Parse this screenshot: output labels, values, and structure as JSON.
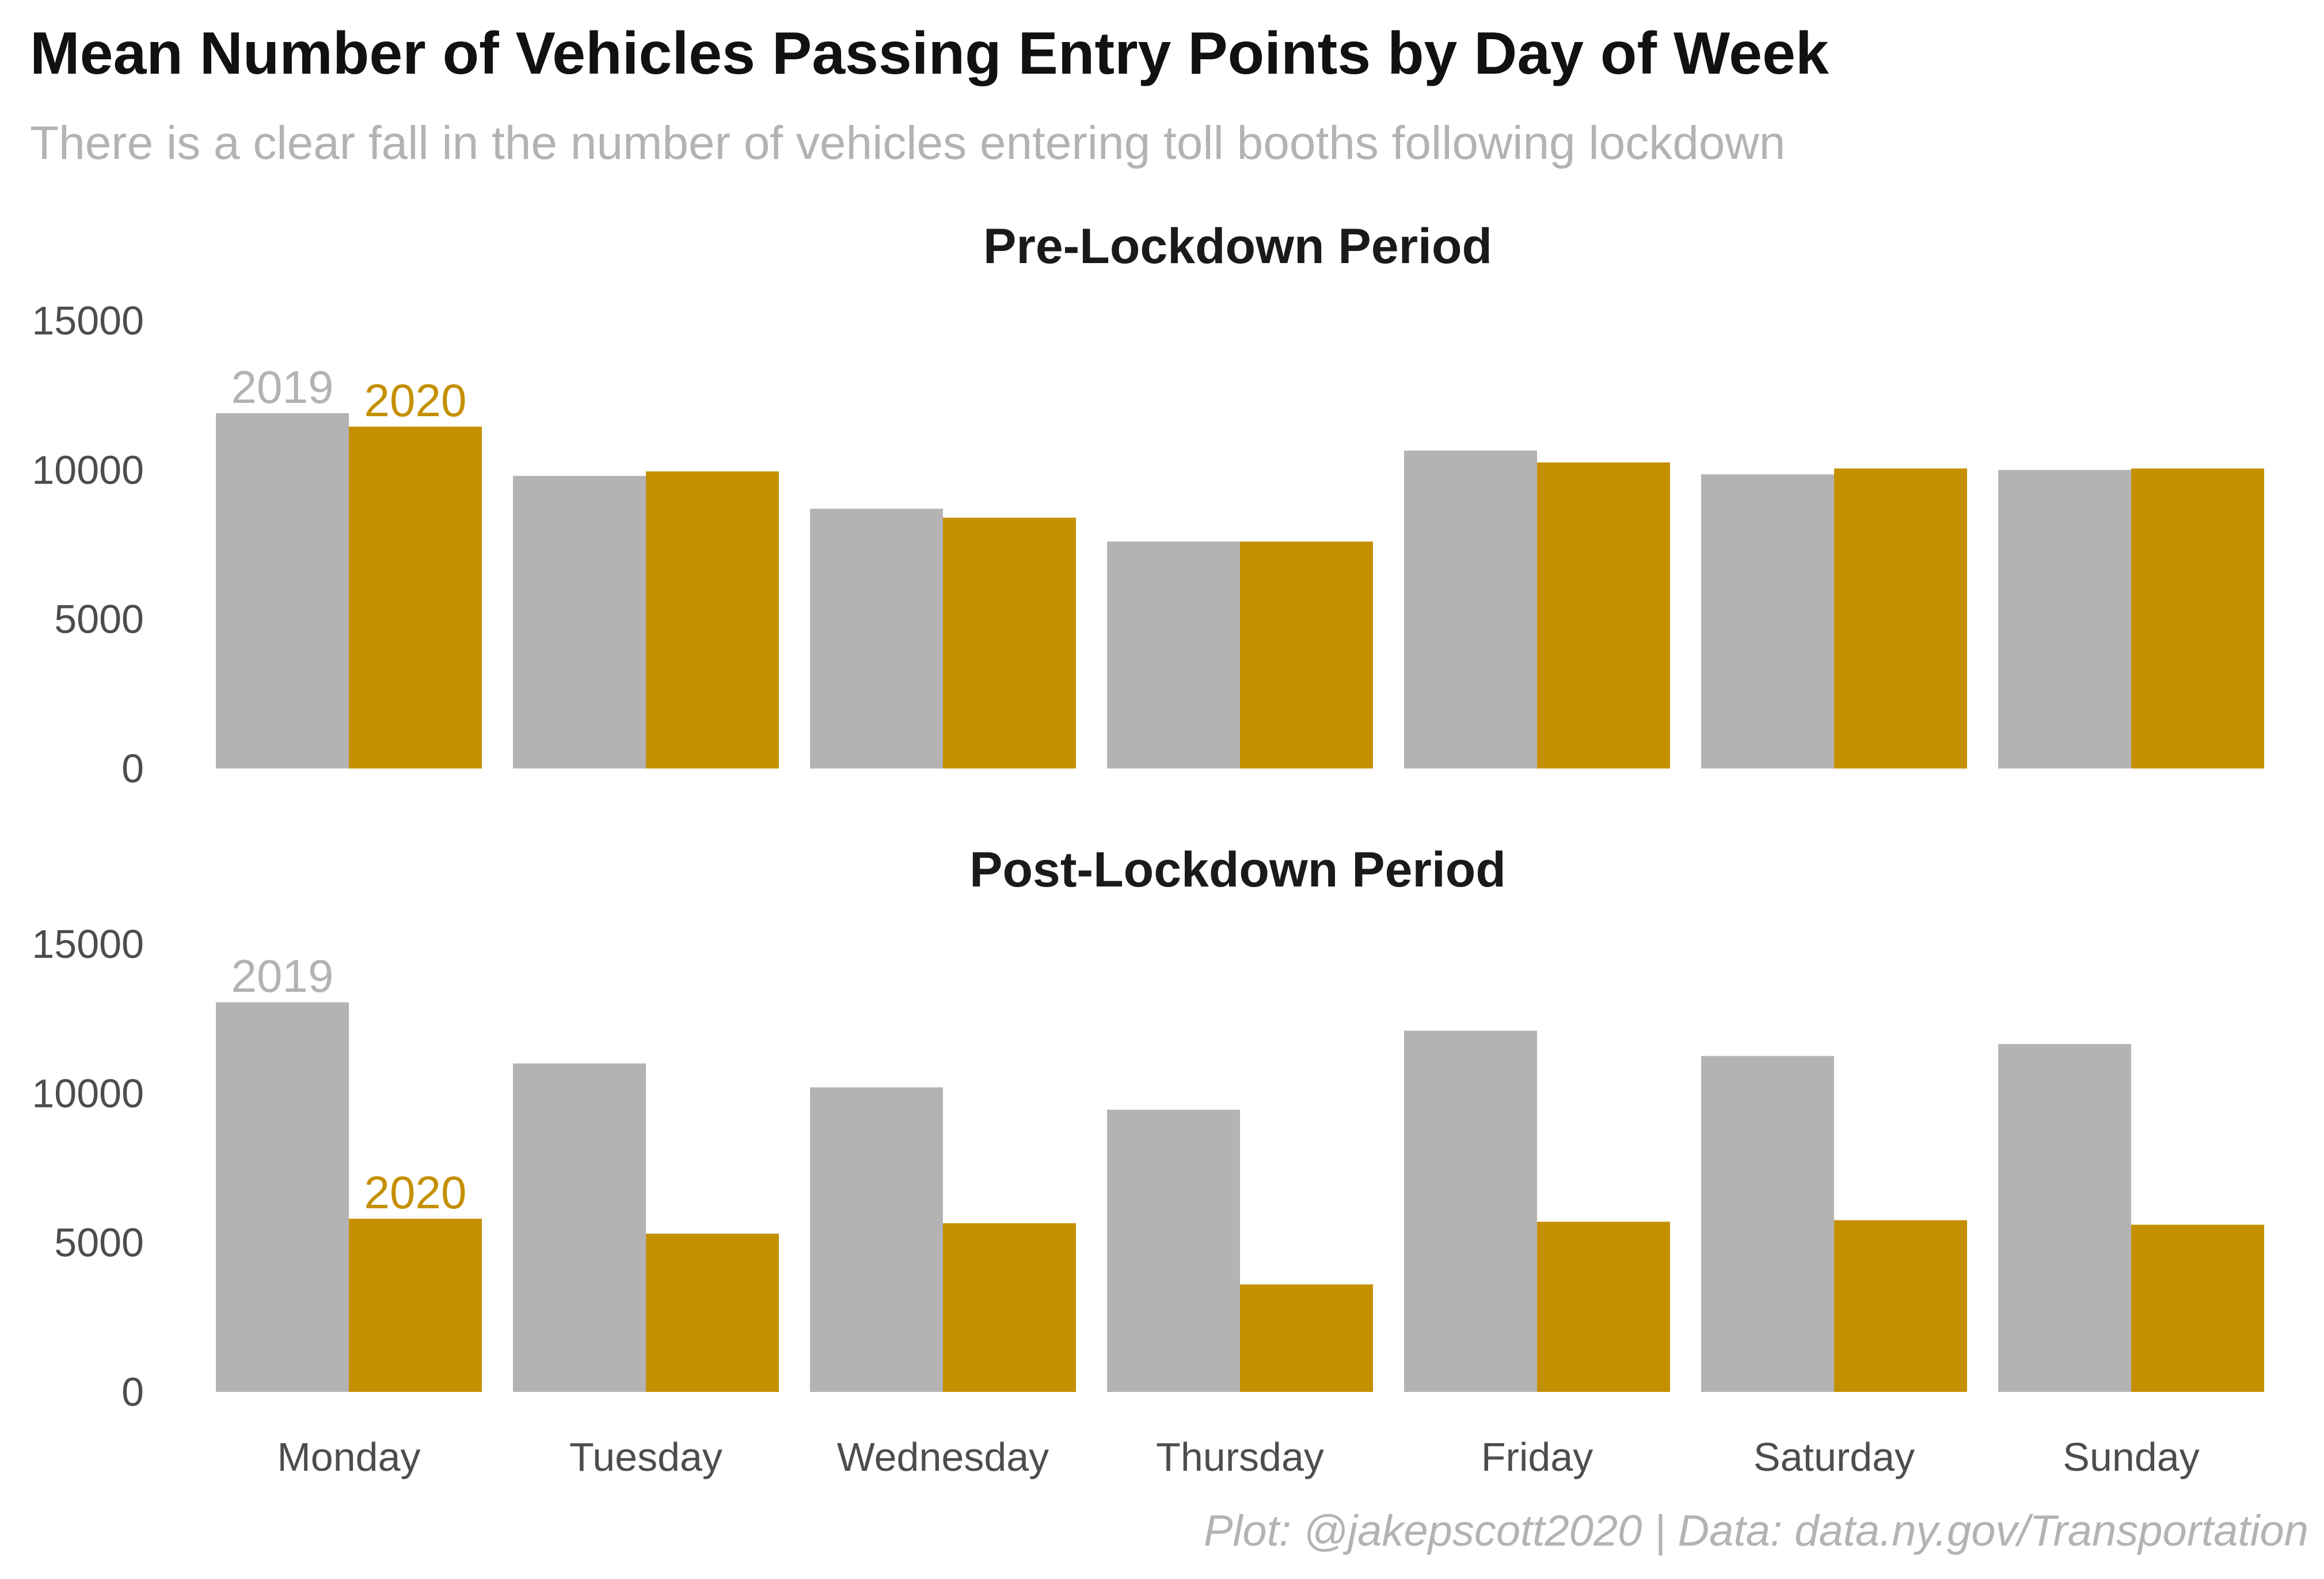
{
  "chart_data": {
    "type": "bar",
    "title": "Mean Number of Vehicles Passing Entry Points by Day of Week",
    "subtitle": "There is a clear fall in the number of vehicles entering toll booths following lockdown",
    "caption": "Plot: @jakepscott2020 | Data: data.ny.gov/Transportation",
    "categories": [
      "Monday",
      "Tuesday",
      "Wednesday",
      "Thursday",
      "Friday",
      "Saturday",
      "Sunday"
    ],
    "ylim": [
      0,
      15000
    ],
    "yticks": [
      "0",
      "5000",
      "10000",
      "15000"
    ],
    "grid": false,
    "colors": {
      "2019": "#b3b3b3",
      "2020": "#c49000"
    },
    "panels": [
      {
        "title": "Pre-Lockdown Period",
        "series": [
          {
            "name": "2019",
            "values": [
              11900,
              9800,
              8700,
              7600,
              10650,
              9850,
              10000
            ]
          },
          {
            "name": "2020",
            "values": [
              11450,
              9950,
              8400,
              7600,
              10250,
              10050,
              10050
            ]
          }
        ]
      },
      {
        "title": "Post-Lockdown Period",
        "series": [
          {
            "name": "2019",
            "values": [
              13050,
              11000,
              10200,
              9450,
              12100,
              11250,
              11650
            ]
          },
          {
            "name": "2020",
            "values": [
              5800,
              5300,
              5650,
              3600,
              5700,
              5750,
              5600
            ]
          }
        ]
      }
    ]
  }
}
